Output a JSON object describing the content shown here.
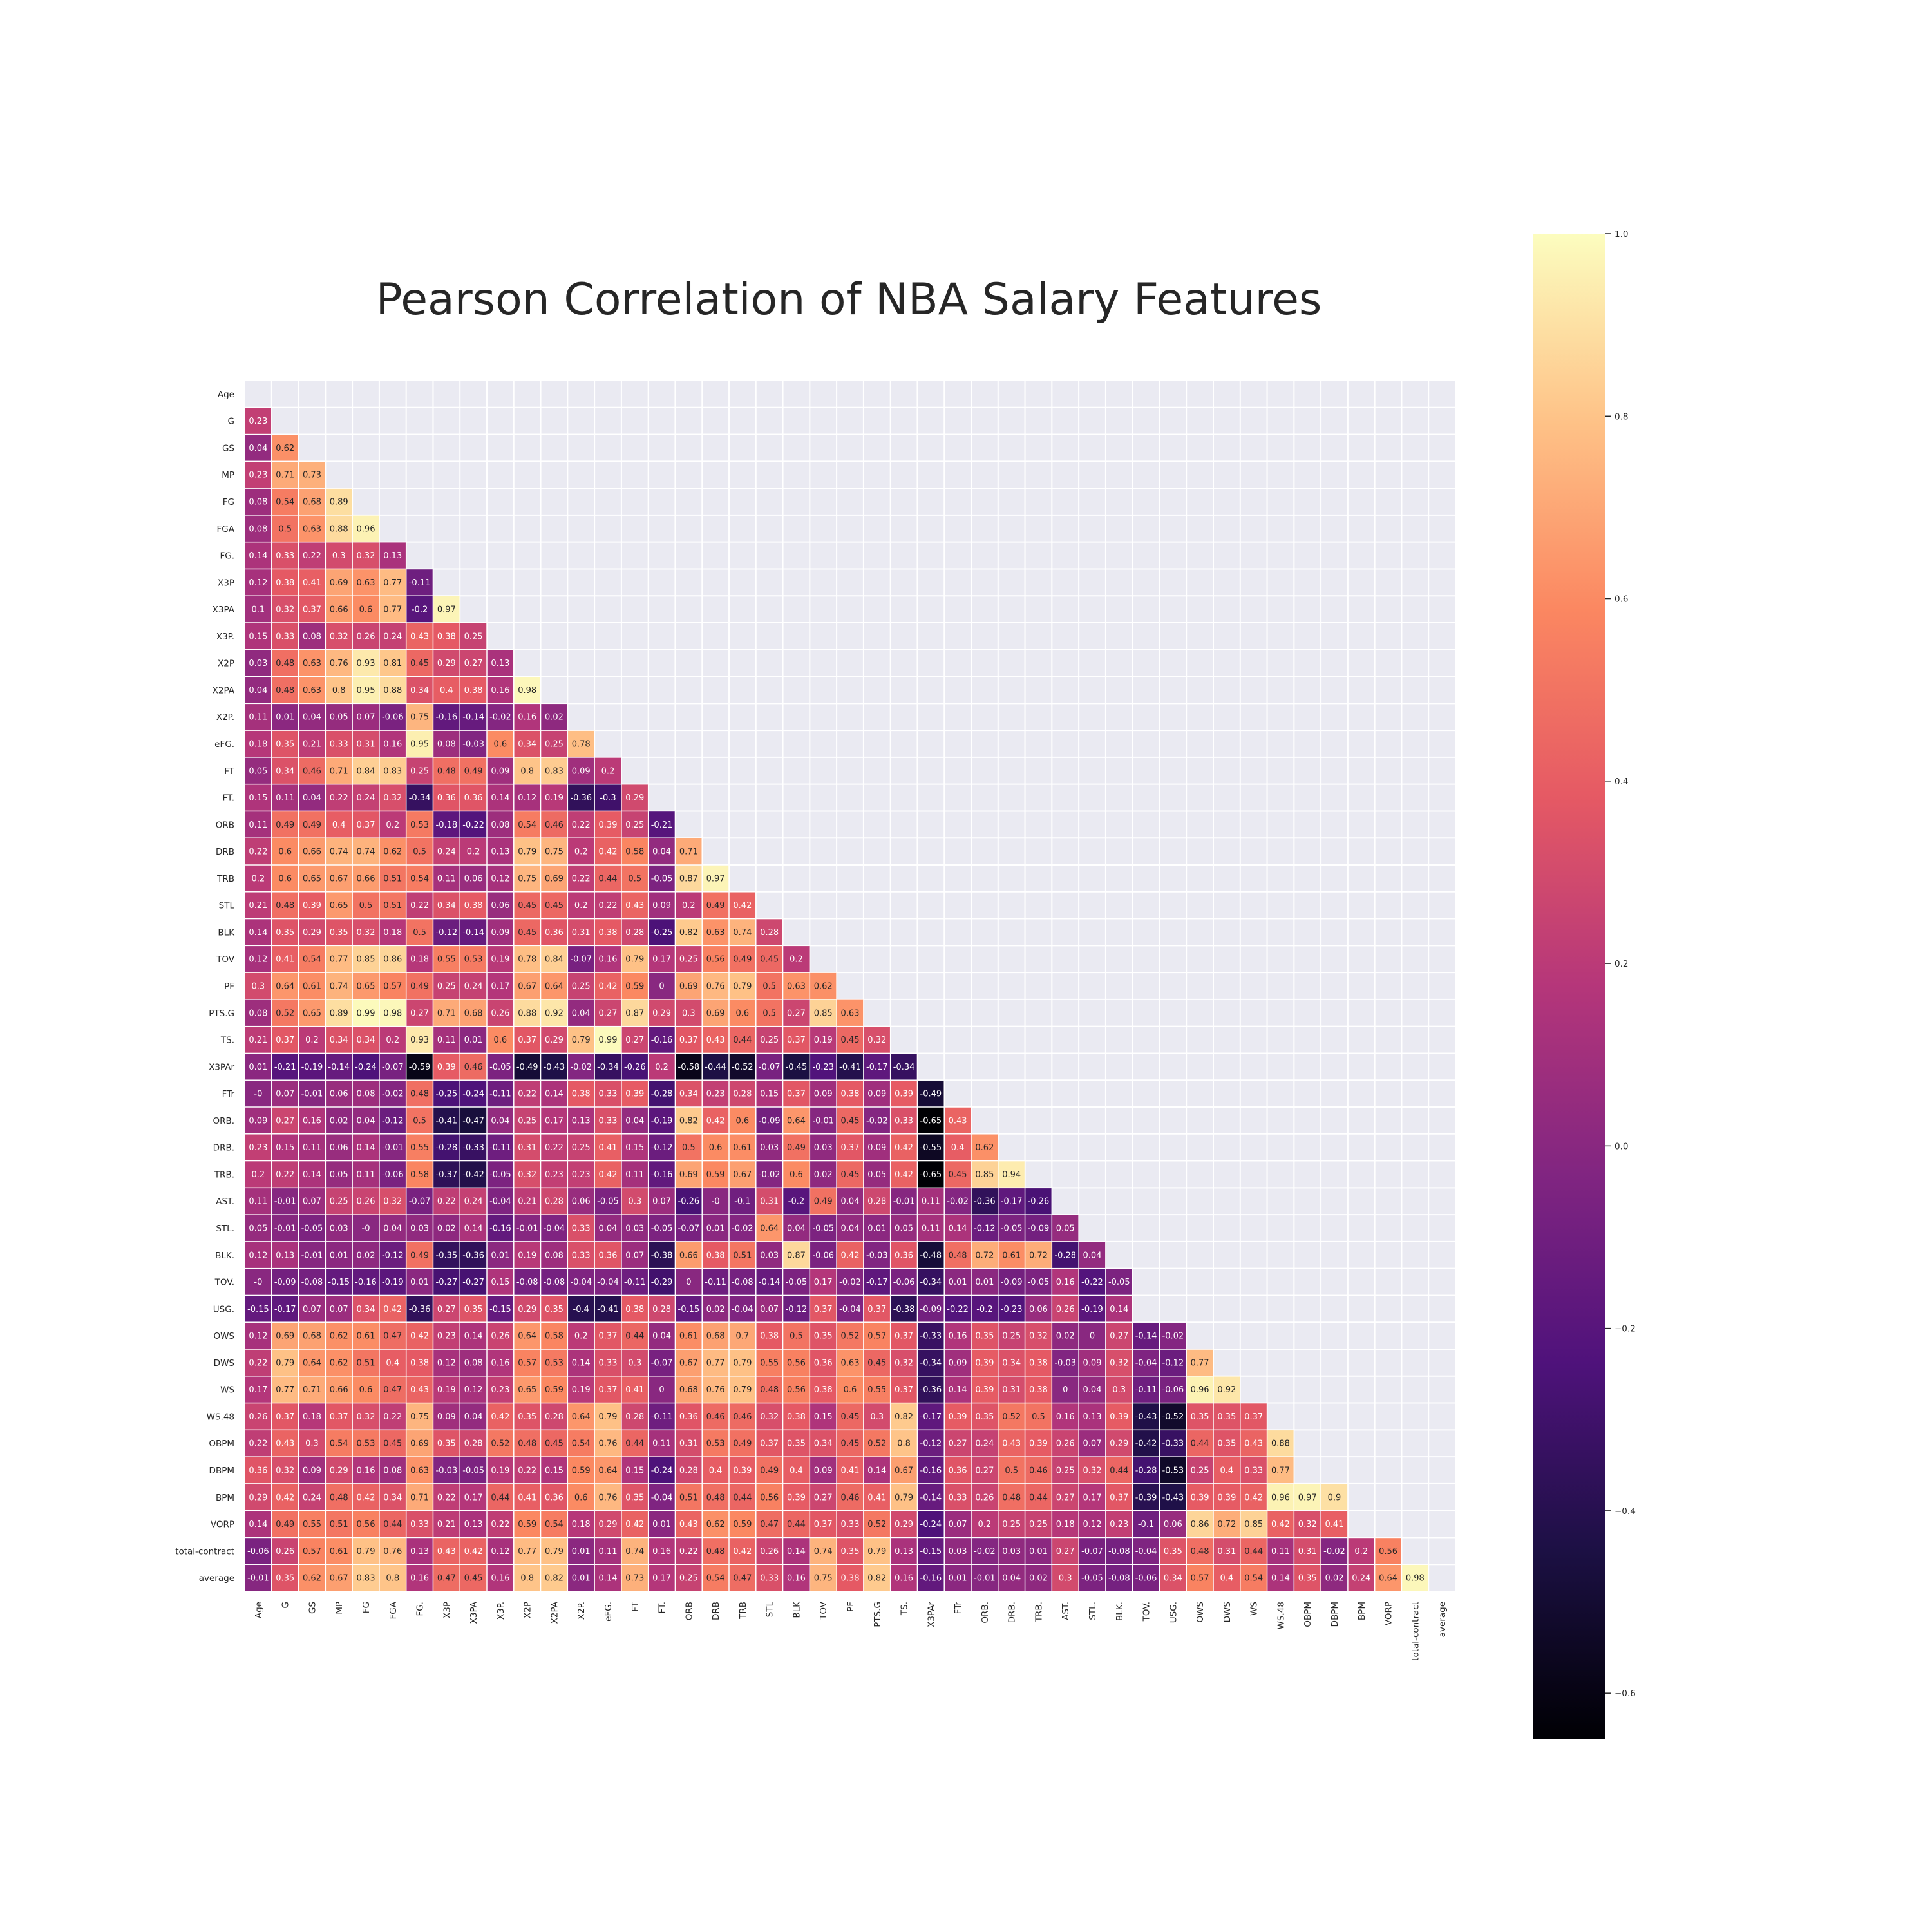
{
  "chart_data": {
    "type": "heatmap",
    "title": "Pearson Correlation of NBA Salary Features",
    "labels": [
      "Age",
      "G",
      "GS",
      "MP",
      "FG",
      "FGA",
      "FG.",
      "X3P",
      "X3PA",
      "X3P.",
      "X2P",
      "X2PA",
      "X2P.",
      "eFG.",
      "FT",
      "FT.",
      "ORB",
      "DRB",
      "TRB",
      "STL",
      "BLK",
      "TOV",
      "PF",
      "PTS.G",
      "TS.",
      "X3PAr",
      "FTr",
      "ORB.",
      "DRB.",
      "TRB.",
      "AST.",
      "STL.",
      "BLK.",
      "TOV.",
      "USG.",
      "OWS",
      "DWS",
      "WS",
      "WS.48",
      "OBPM",
      "DBPM",
      "BPM",
      "VORP",
      "total-contract",
      "average"
    ],
    "mask": "upper-triangle",
    "colormap": "magma",
    "vmin": -0.65,
    "vmax": 1.0,
    "colorbar_ticks": [
      1.0,
      0.8,
      0.6,
      0.4,
      0.2,
      0.0,
      -0.2,
      -0.4,
      -0.6
    ],
    "colorbar_tick_labels": [
      "1.0",
      "0.8",
      "0.6",
      "0.4",
      "0.2",
      "0.0",
      "−0.2",
      "−0.4",
      "−0.6"
    ],
    "values": [
      [],
      [
        0.23
      ],
      [
        0.04,
        0.62
      ],
      [
        0.23,
        0.71,
        0.73
      ],
      [
        0.08,
        0.54,
        0.68,
        0.89
      ],
      [
        0.08,
        0.5,
        0.63,
        0.88,
        0.96
      ],
      [
        0.14,
        0.33,
        0.22,
        0.3,
        0.32,
        0.13
      ],
      [
        0.12,
        0.38,
        0.41,
        0.69,
        0.63,
        0.77,
        -0.11
      ],
      [
        0.1,
        0.32,
        0.37,
        0.66,
        0.6,
        0.77,
        -0.2,
        0.97
      ],
      [
        0.15,
        0.33,
        0.08,
        0.32,
        0.26,
        0.24,
        0.43,
        0.38,
        0.25
      ],
      [
        0.03,
        0.48,
        0.63,
        0.76,
        0.93,
        0.81,
        0.45,
        0.29,
        0.27,
        0.13
      ],
      [
        0.04,
        0.48,
        0.63,
        0.8,
        0.95,
        0.88,
        0.34,
        0.4,
        0.38,
        0.16,
        0.98
      ],
      [
        0.11,
        0.01,
        0.04,
        0.05,
        0.07,
        -0.06,
        0.75,
        -0.16,
        -0.14,
        -0.02,
        0.16,
        0.02
      ],
      [
        0.18,
        0.35,
        0.21,
        0.33,
        0.31,
        0.16,
        0.95,
        0.08,
        -0.03,
        0.6,
        0.34,
        0.25,
        0.78
      ],
      [
        0.05,
        0.34,
        0.46,
        0.71,
        0.84,
        0.83,
        0.25,
        0.48,
        0.49,
        0.09,
        0.8,
        0.83,
        0.09,
        0.2
      ],
      [
        0.15,
        0.11,
        0.04,
        0.22,
        0.24,
        0.32,
        -0.34,
        0.36,
        0.36,
        0.14,
        0.12,
        0.19,
        -0.36,
        -0.3,
        0.29
      ],
      [
        0.11,
        0.49,
        0.49,
        0.4,
        0.37,
        0.2,
        0.53,
        -0.18,
        -0.22,
        0.08,
        0.54,
        0.46,
        0.22,
        0.39,
        0.25,
        -0.21
      ],
      [
        0.22,
        0.6,
        0.66,
        0.74,
        0.74,
        0.62,
        0.5,
        0.24,
        0.2,
        0.13,
        0.79,
        0.75,
        0.2,
        0.42,
        0.58,
        0.04,
        0.71
      ],
      [
        0.2,
        0.6,
        0.65,
        0.67,
        0.66,
        0.51,
        0.54,
        0.11,
        0.06,
        0.12,
        0.75,
        0.69,
        0.22,
        0.44,
        0.5,
        -0.05,
        0.87,
        0.97
      ],
      [
        0.21,
        0.48,
        0.39,
        0.65,
        0.5,
        0.51,
        0.22,
        0.34,
        0.38,
        0.06,
        0.45,
        0.45,
        0.2,
        0.22,
        0.43,
        0.09,
        0.2,
        0.49,
        0.42
      ],
      [
        0.14,
        0.35,
        0.29,
        0.35,
        0.32,
        0.18,
        0.5,
        -0.12,
        -0.14,
        0.09,
        0.45,
        0.36,
        0.31,
        0.38,
        0.28,
        -0.25,
        0.82,
        0.63,
        0.74,
        0.28
      ],
      [
        0.12,
        0.41,
        0.54,
        0.77,
        0.85,
        0.86,
        0.18,
        0.55,
        0.53,
        0.19,
        0.78,
        0.84,
        -0.07,
        0.16,
        0.79,
        0.17,
        0.25,
        0.56,
        0.49,
        0.45,
        0.2
      ],
      [
        0.3,
        0.64,
        0.61,
        0.74,
        0.65,
        0.57,
        0.49,
        0.25,
        0.24,
        0.17,
        0.67,
        0.64,
        0.25,
        0.42,
        0.59,
        0,
        0.69,
        0.76,
        0.79,
        0.5,
        0.63,
        0.62
      ],
      [
        0.08,
        0.52,
        0.65,
        0.89,
        0.99,
        0.98,
        0.27,
        0.71,
        0.68,
        0.26,
        0.88,
        0.92,
        0.04,
        0.27,
        0.87,
        0.29,
        0.3,
        0.69,
        0.6,
        0.5,
        0.27,
        0.85,
        0.63
      ],
      [
        0.21,
        0.37,
        0.2,
        0.34,
        0.34,
        0.2,
        0.93,
        0.11,
        0.01,
        0.6,
        0.37,
        0.29,
        0.79,
        0.99,
        0.27,
        -0.16,
        0.37,
        0.43,
        0.44,
        0.25,
        0.37,
        0.19,
        0.45,
        0.32
      ],
      [
        0.01,
        -0.21,
        -0.19,
        -0.14,
        -0.24,
        -0.07,
        -0.59,
        0.39,
        0.46,
        -0.05,
        -0.49,
        -0.43,
        -0.02,
        -0.34,
        -0.26,
        0.2,
        -0.58,
        -0.44,
        -0.52,
        -0.07,
        -0.45,
        -0.23,
        -0.41,
        -0.17,
        -0.34
      ],
      [
        0,
        0.07,
        -0.01,
        0.06,
        0.08,
        -0.02,
        0.48,
        -0.25,
        -0.24,
        -0.11,
        0.22,
        0.14,
        0.38,
        0.33,
        0.39,
        -0.28,
        0.34,
        0.23,
        0.28,
        0.15,
        0.37,
        0.09,
        0.38,
        0.09,
        0.39,
        -0.49
      ],
      [
        0.09,
        0.27,
        0.16,
        0.02,
        0.04,
        -0.12,
        0.5,
        -0.41,
        -0.47,
        0.04,
        0.25,
        0.17,
        0.13,
        0.33,
        0.04,
        -0.19,
        0.82,
        0.42,
        0.6,
        -0.09,
        0.64,
        -0.01,
        0.45,
        -0.02,
        0.33,
        -0.65,
        0.43
      ],
      [
        0.23,
        0.15,
        0.11,
        0.06,
        0.14,
        -0.01,
        0.55,
        -0.28,
        -0.33,
        -0.11,
        0.31,
        0.22,
        0.25,
        0.41,
        0.15,
        -0.12,
        0.5,
        0.6,
        0.61,
        0.03,
        0.49,
        0.03,
        0.37,
        0.09,
        0.42,
        -0.55,
        0.4,
        0.62
      ],
      [
        0.2,
        0.22,
        0.14,
        0.05,
        0.11,
        -0.06,
        0.58,
        -0.37,
        -0.42,
        -0.05,
        0.32,
        0.23,
        0.23,
        0.42,
        0.11,
        -0.16,
        0.69,
        0.59,
        0.67,
        -0.02,
        0.6,
        0.02,
        0.45,
        0.05,
        0.42,
        -0.65,
        0.45,
        0.85,
        0.94
      ],
      [
        0.11,
        -0.01,
        0.07,
        0.25,
        0.26,
        0.32,
        -0.07,
        0.22,
        0.24,
        -0.04,
        0.21,
        0.28,
        0.06,
        -0.05,
        0.3,
        0.07,
        -0.26,
        0,
        -0.1,
        0.31,
        -0.2,
        0.49,
        0.04,
        0.28,
        -0.01,
        0.11,
        -0.02,
        -0.36,
        -0.17,
        -0.26
      ],
      [
        0.05,
        -0.01,
        -0.05,
        0.03,
        0,
        0.04,
        0.03,
        0.02,
        0.14,
        -0.16,
        -0.01,
        -0.04,
        0.33,
        0.04,
        0.03,
        -0.05,
        -0.07,
        0.01,
        -0.02,
        0.64,
        0.04,
        -0.05,
        0.04,
        0.01,
        0.05,
        0.11,
        0.14,
        -0.12,
        -0.05,
        -0.09,
        0.05
      ],
      [
        0.12,
        0.13,
        -0.01,
        0.01,
        0.02,
        -0.12,
        0.49,
        -0.35,
        -0.36,
        0.01,
        0.19,
        0.08,
        0.33,
        0.36,
        0.07,
        -0.38,
        0.66,
        0.38,
        0.51,
        0.03,
        0.87,
        -0.06,
        0.42,
        -0.03,
        0.36,
        -0.48,
        0.48,
        0.72,
        0.61,
        0.72,
        -0.28,
        0.04
      ],
      [
        0,
        -0.09,
        -0.08,
        -0.15,
        -0.16,
        -0.19,
        0.01,
        -0.27,
        -0.27,
        0.15,
        -0.08,
        -0.08,
        -0.04,
        -0.04,
        -0.11,
        -0.29,
        0,
        -0.11,
        -0.08,
        -0.14,
        -0.05,
        0.17,
        -0.02,
        -0.17,
        -0.06,
        -0.34,
        0.01,
        0.01,
        -0.09,
        -0.05,
        0.16,
        -0.22,
        -0.05
      ],
      [
        -0.15,
        -0.17,
        0.07,
        0.07,
        0.34,
        0.42,
        -0.36,
        0.27,
        0.35,
        -0.15,
        0.29,
        0.35,
        -0.4,
        -0.41,
        0.38,
        0.28,
        -0.15,
        0.02,
        -0.04,
        0.07,
        -0.12,
        0.37,
        -0.04,
        0.37,
        -0.38,
        -0.09,
        -0.22,
        -0.2,
        -0.23,
        0.06,
        0.26,
        -0.19,
        0.14
      ],
      [
        0.12,
        0.69,
        0.68,
        0.62,
        0.61,
        0.47,
        0.42,
        0.23,
        0.14,
        0.26,
        0.64,
        0.58,
        0.2,
        0.37,
        0.44,
        0.04,
        0.61,
        0.68,
        0.7,
        0.38,
        0.5,
        0.35,
        0.52,
        0.57,
        0.37,
        -0.33,
        0.16,
        0.35,
        0.25,
        0.32,
        0.02,
        0,
        0.27,
        -0.14,
        -0.02
      ],
      [
        0.22,
        0.79,
        0.64,
        0.62,
        0.51,
        0.4,
        0.38,
        0.12,
        0.08,
        0.16,
        0.57,
        0.53,
        0.14,
        0.33,
        0.3,
        -0.07,
        0.67,
        0.77,
        0.79,
        0.55,
        0.56,
        0.36,
        0.63,
        0.45,
        0.32,
        -0.34,
        0.09,
        0.39,
        0.34,
        0.38,
        -0.03,
        0.09,
        0.32,
        -0.04,
        -0.12,
        0.77
      ],
      [
        0.17,
        0.77,
        0.71,
        0.66,
        0.6,
        0.47,
        0.43,
        0.19,
        0.12,
        0.23,
        0.65,
        0.59,
        0.19,
        0.37,
        0.41,
        0,
        0.68,
        0.76,
        0.79,
        0.48,
        0.56,
        0.38,
        0.6,
        0.55,
        0.37,
        -0.36,
        0.14,
        0.39,
        0.31,
        0.38,
        0,
        0.04,
        0.3,
        -0.11,
        -0.06,
        0.96,
        0.92
      ],
      [
        0.26,
        0.37,
        0.18,
        0.37,
        0.32,
        0.22,
        0.75,
        0.09,
        0.04,
        0.42,
        0.35,
        0.28,
        0.64,
        0.79,
        0.28,
        -0.11,
        0.36,
        0.46,
        0.46,
        0.32,
        0.38,
        0.15,
        0.45,
        0.3,
        0.82,
        -0.17,
        0.39,
        0.35,
        0.52,
        0.5,
        0.16,
        0.13,
        0.39,
        -0.43,
        -0.52,
        0.35,
        0.35,
        0.37
      ],
      [
        0.22,
        0.43,
        0.3,
        0.54,
        0.53,
        0.45,
        0.69,
        0.35,
        0.28,
        0.52,
        0.48,
        0.45,
        0.54,
        0.76,
        0.44,
        0.11,
        0.31,
        0.53,
        0.49,
        0.37,
        0.35,
        0.34,
        0.45,
        0.52,
        0.8,
        -0.12,
        0.27,
        0.24,
        0.43,
        0.39,
        0.26,
        0.07,
        0.29,
        -0.42,
        -0.33,
        0.44,
        0.35,
        0.43,
        0.88
      ],
      [
        0.36,
        0.32,
        0.09,
        0.29,
        0.16,
        0.08,
        0.63,
        -0.03,
        -0.05,
        0.19,
        0.22,
        0.15,
        0.59,
        0.64,
        0.15,
        -0.24,
        0.28,
        0.4,
        0.39,
        0.49,
        0.4,
        0.09,
        0.41,
        0.14,
        0.67,
        -0.16,
        0.36,
        0.27,
        0.5,
        0.46,
        0.25,
        0.32,
        0.44,
        -0.28,
        -0.53,
        0.25,
        0.4,
        0.33,
        0.77
      ],
      [
        0.29,
        0.42,
        0.24,
        0.48,
        0.42,
        0.34,
        0.71,
        0.22,
        0.17,
        0.44,
        0.41,
        0.36,
        0.6,
        0.76,
        0.35,
        -0.04,
        0.51,
        0.48,
        0.44,
        0.56,
        0.39,
        0.27,
        0.46,
        0.41,
        0.79,
        -0.14,
        0.33,
        0.26,
        0.48,
        0.44,
        0.27,
        0.17,
        0.37,
        -0.39,
        -0.43,
        0.39,
        0.39,
        0.42,
        0.96,
        0.97,
        0.9
      ],
      [
        0.14,
        0.49,
        0.55,
        0.51,
        0.56,
        0.44,
        0.33,
        0.21,
        0.13,
        0.22,
        0.59,
        0.54,
        0.18,
        0.29,
        0.42,
        0.01,
        0.43,
        0.62,
        0.59,
        0.47,
        0.44,
        0.37,
        0.33,
        0.52,
        0.29,
        -0.24,
        0.07,
        0.2,
        0.25,
        0.25,
        0.18,
        0.12,
        0.23,
        -0.1,
        0.06,
        0.86,
        0.72,
        0.85,
        0.42,
        0.32,
        0.41
      ],
      [
        -0.06,
        0.26,
        0.57,
        0.61,
        0.79,
        0.76,
        0.13,
        0.43,
        0.42,
        0.12,
        0.77,
        0.79,
        0.01,
        0.11,
        0.74,
        0.16,
        0.22,
        0.48,
        0.42,
        0.26,
        0.14,
        0.74,
        0.35,
        0.79,
        0.13,
        -0.15,
        0.03,
        -0.02,
        0.03,
        0.01,
        0.27,
        -0.07,
        -0.08,
        -0.04,
        0.35,
        0.48,
        0.31,
        0.44,
        0.11,
        0.31,
        -0.02,
        0.2,
        0.56
      ],
      [
        -0.01,
        0.35,
        0.62,
        0.67,
        0.83,
        0.8,
        0.16,
        0.47,
        0.45,
        0.16,
        0.8,
        0.82,
        0.01,
        0.14,
        0.73,
        0.17,
        0.25,
        0.54,
        0.47,
        0.33,
        0.16,
        0.75,
        0.38,
        0.82,
        0.16,
        -0.16,
        0.01,
        -0.01,
        0.04,
        0.02,
        0.3,
        -0.05,
        -0.08,
        -0.06,
        0.34,
        0.57,
        0.4,
        0.54,
        0.14,
        0.35,
        0.02,
        0.24,
        0.64,
        0.98
      ]
    ]
  }
}
